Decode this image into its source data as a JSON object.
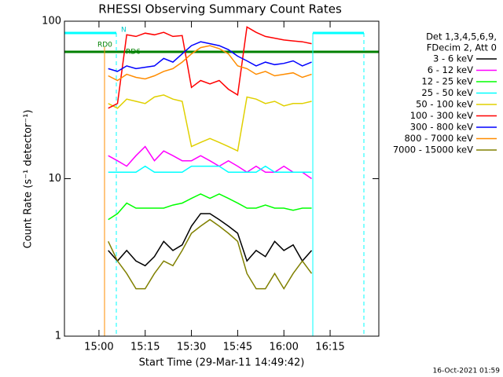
{
  "chart_data": {
    "type": "line",
    "title": "RHESSI Observing Summary Count Rates",
    "x_label": "Start Time (29-Mar-11 14:49:42)",
    "y_label": "Count Rate (s⁻¹ detector⁻¹)",
    "legend_header": [
      "Det 1,3,4,5,6,9,",
      "FDecim 2, Att 0"
    ],
    "footer": "16-Oct-2021 01:59",
    "annotations": [
      "N",
      "RD0",
      "RD6"
    ],
    "log_y": true,
    "xlim": [
      888.8,
      990.8
    ],
    "xticks": [
      {
        "value": 900,
        "label": "15:00"
      },
      {
        "value": 915,
        "label": "15:15"
      },
      {
        "value": 930,
        "label": "15:30"
      },
      {
        "value": 945,
        "label": "15:45"
      },
      {
        "value": 960,
        "label": "16:00"
      },
      {
        "value": 975,
        "label": "16:15"
      }
    ],
    "ylim": [
      1,
      100
    ],
    "yticks": [
      1,
      10,
      100
    ],
    "x": [
      903,
      906,
      909,
      912,
      915,
      918,
      921,
      924,
      927,
      930,
      933,
      936,
      939,
      942,
      945,
      948,
      951,
      954,
      957,
      960,
      963,
      966,
      969
    ],
    "series": [
      {
        "name": "3 - 6 keV",
        "color": "#000000",
        "values": [
          3.5,
          3,
          3.5,
          3,
          2.8,
          3.2,
          4,
          3.5,
          3.8,
          5,
          6,
          6,
          5.5,
          5,
          4.5,
          3,
          3.5,
          3.2,
          4,
          3.5,
          3.8,
          3,
          3.5
        ]
      },
      {
        "name": "6 - 12 keV",
        "color": "#ff00ff",
        "values": [
          14,
          13,
          12,
          14,
          16,
          13,
          15,
          14,
          13,
          13,
          14,
          13,
          12,
          13,
          12,
          11,
          12,
          11,
          11,
          12,
          11,
          11,
          10
        ]
      },
      {
        "name": "12 - 25 keV",
        "color": "#00ff00",
        "values": [
          5.5,
          6,
          7,
          6.5,
          6.5,
          6.5,
          6.5,
          6.8,
          7,
          7.5,
          8,
          7.5,
          8,
          7.5,
          7,
          6.5,
          6.5,
          6.8,
          6.5,
          6.5,
          6.3,
          6.5,
          6.5
        ]
      },
      {
        "name": "25 - 50 keV",
        "color": "#00ffff",
        "values": [
          11,
          11,
          11,
          11,
          12,
          11,
          11,
          11,
          11,
          12,
          12,
          12,
          12,
          11,
          11,
          11,
          11,
          12,
          11,
          11,
          11,
          11,
          11
        ]
      },
      {
        "name": "50 - 100 keV",
        "color": "#e0d000",
        "values": [
          30,
          28,
          32,
          31,
          30,
          33,
          34,
          32,
          31,
          16,
          17,
          18,
          17,
          16,
          15,
          33,
          32,
          30,
          31,
          29,
          30,
          30,
          31
        ]
      },
      {
        "name": "100 - 300 keV",
        "color": "#ff0000",
        "values": [
          28,
          30,
          82,
          80,
          84,
          82,
          85,
          80,
          81,
          38,
          42,
          40,
          42,
          37,
          34,
          92,
          85,
          80,
          78,
          76,
          75,
          74,
          72
        ]
      },
      {
        "name": "300 - 800 keV",
        "color": "#0000ff",
        "values": [
          50,
          48,
          52,
          50,
          51,
          52,
          58,
          55,
          62,
          70,
          74,
          72,
          70,
          66,
          60,
          56,
          52,
          55,
          53,
          54,
          56,
          52,
          55
        ]
      },
      {
        "name": "800 - 7000 keV",
        "color": "#ff8c00",
        "values": [
          45,
          42,
          46,
          44,
          43,
          45,
          48,
          50,
          55,
          62,
          68,
          70,
          67,
          62,
          52,
          50,
          46,
          48,
          45,
          46,
          47,
          44,
          46
        ]
      },
      {
        "name": "7000 - 15000 keV",
        "color": "#808000",
        "values": [
          4,
          3,
          2.5,
          2,
          2,
          2.5,
          3,
          2.8,
          3.5,
          4.5,
          5,
          5.5,
          5,
          4.5,
          4,
          2.5,
          2,
          2,
          2.5,
          2,
          2.5,
          3,
          2.5
        ]
      }
    ]
  }
}
